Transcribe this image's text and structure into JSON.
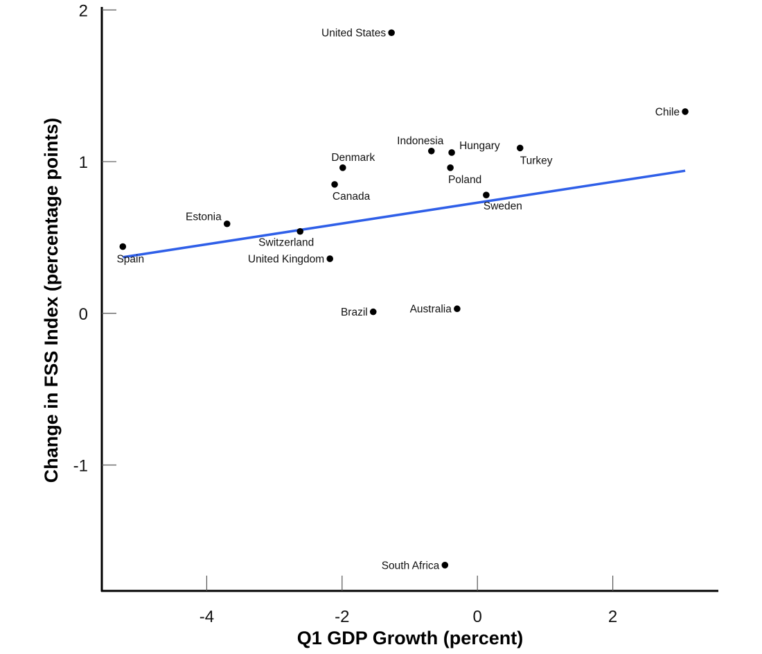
{
  "chart_data": {
    "type": "scatter",
    "title": "",
    "xlabel": "Q1 GDP Growth (percent)",
    "ylabel": "Change in FSS Index (percentage points)",
    "xlim": [
      -5.55,
      3.55
    ],
    "ylim": [
      -1.83,
      2.02
    ],
    "xticks": [
      -4,
      -2,
      0,
      2
    ],
    "yticks": [
      -1,
      0,
      1,
      2
    ],
    "xtick_labels": [
      "-4",
      "-2",
      "0",
      "2"
    ],
    "ytick_labels": [
      "-1",
      "0",
      "1",
      "2"
    ],
    "grid": false,
    "legend": "none",
    "point_color": "#000000",
    "fit_line_color": "#2f5fe8",
    "points": [
      {
        "label": "United States",
        "x": -1.27,
        "y": 1.85,
        "label_pos": "left"
      },
      {
        "label": "Chile",
        "x": 3.07,
        "y": 1.33,
        "label_pos": "left"
      },
      {
        "label": "Indonesia",
        "x": -0.68,
        "y": 1.07,
        "label_pos": "top"
      },
      {
        "label": "Hungary",
        "x": -0.38,
        "y": 1.06,
        "label_pos": "right-top"
      },
      {
        "label": "Turkey",
        "x": 0.63,
        "y": 1.09,
        "label_pos": "bottom-right"
      },
      {
        "label": "Poland",
        "x": -0.4,
        "y": 0.96,
        "label_pos": "bottom"
      },
      {
        "label": "Denmark",
        "x": -1.99,
        "y": 0.96,
        "label_pos": "top"
      },
      {
        "label": "Canada",
        "x": -2.11,
        "y": 0.85,
        "label_pos": "bottom"
      },
      {
        "label": "Sweden",
        "x": 0.13,
        "y": 0.78,
        "label_pos": "bottom"
      },
      {
        "label": "Estonia",
        "x": -3.7,
        "y": 0.59,
        "label_pos": "left-top"
      },
      {
        "label": "Switzerland",
        "x": -2.62,
        "y": 0.54,
        "label_pos": "bottom"
      },
      {
        "label": "Spain",
        "x": -5.24,
        "y": 0.44,
        "label_pos": "bottom"
      },
      {
        "label": "United Kingdom",
        "x": -2.18,
        "y": 0.36,
        "label_pos": "left"
      },
      {
        "label": "Brazil",
        "x": -1.54,
        "y": 0.01,
        "label_pos": "left"
      },
      {
        "label": "Australia",
        "x": -0.3,
        "y": 0.03,
        "label_pos": "left"
      },
      {
        "label": "South Africa",
        "x": -0.48,
        "y": -1.66,
        "label_pos": "left"
      }
    ],
    "fit_line": {
      "x": [
        -5.24,
        3.07
      ],
      "y": [
        0.37,
        0.94
      ]
    }
  }
}
